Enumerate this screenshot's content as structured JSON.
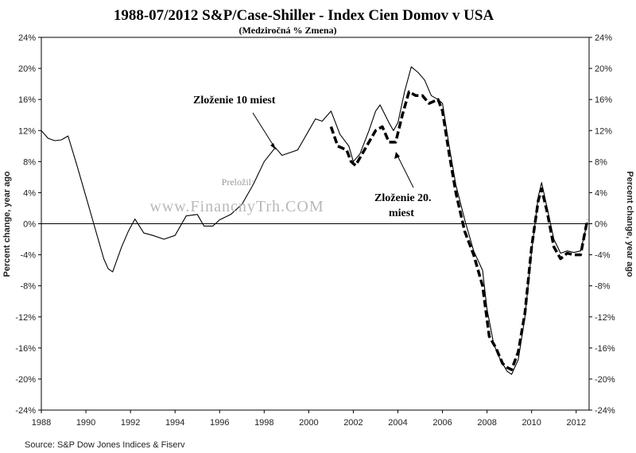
{
  "chart_data": {
    "type": "line",
    "title": "1988-07/2012 S&P/Case-Shiller  - Index Cien Domov v USA",
    "subtitle": "(Medziročná % Zmena)",
    "ylabel_left": "Percent change, year ago",
    "ylabel_right": "Percent change, year ago",
    "xlabel": "",
    "xlim": [
      1988,
      2012.58
    ],
    "ylim": [
      -24,
      24
    ],
    "x_ticks": [
      1988,
      1990,
      1992,
      1994,
      1996,
      1998,
      2000,
      2002,
      2004,
      2006,
      2008,
      2010,
      2012
    ],
    "y_ticks": [
      -24,
      -20,
      -16,
      -12,
      -8,
      -4,
      0,
      4,
      8,
      12,
      16,
      20,
      24
    ],
    "y_tick_labels": [
      "-24%",
      "-20%",
      "-16%",
      "-12%",
      "-8%",
      "-4%",
      "0%",
      "4%",
      "8%",
      "12%",
      "16%",
      "20%",
      "24%"
    ],
    "grid": false,
    "zero_line": true,
    "series": [
      {
        "name": "Zloženie 10 miest",
        "style": "solid",
        "color": "#000000",
        "points": [
          [
            1988.0,
            12.0
          ],
          [
            1988.3,
            11.0
          ],
          [
            1988.6,
            10.7
          ],
          [
            1988.9,
            10.8
          ],
          [
            1989.2,
            11.3
          ],
          [
            1989.6,
            7.5
          ],
          [
            1990.0,
            3.5
          ],
          [
            1990.4,
            -0.5
          ],
          [
            1990.8,
            -4.5
          ],
          [
            1991.0,
            -5.8
          ],
          [
            1991.2,
            -6.2
          ],
          [
            1991.6,
            -3.0
          ],
          [
            1991.9,
            -1.0
          ],
          [
            1992.2,
            0.6
          ],
          [
            1992.6,
            -1.2
          ],
          [
            1993.0,
            -1.5
          ],
          [
            1993.5,
            -2.0
          ],
          [
            1994.0,
            -1.5
          ],
          [
            1994.5,
            1.0
          ],
          [
            1995.0,
            1.2
          ],
          [
            1995.3,
            -0.3
          ],
          [
            1995.7,
            -0.3
          ],
          [
            1996.0,
            0.5
          ],
          [
            1996.5,
            1.2
          ],
          [
            1997.0,
            2.5
          ],
          [
            1997.5,
            5.0
          ],
          [
            1998.0,
            8.0
          ],
          [
            1998.5,
            9.8
          ],
          [
            1998.8,
            8.8
          ],
          [
            1999.2,
            9.2
          ],
          [
            1999.5,
            9.5
          ],
          [
            2000.0,
            12.0
          ],
          [
            2000.3,
            13.5
          ],
          [
            2000.6,
            13.2
          ],
          [
            2001.0,
            14.5
          ],
          [
            2001.4,
            11.5
          ],
          [
            2001.8,
            10.0
          ],
          [
            2002.0,
            8.0
          ],
          [
            2002.3,
            9.0
          ],
          [
            2002.7,
            12.0
          ],
          [
            2003.0,
            14.5
          ],
          [
            2003.2,
            15.3
          ],
          [
            2003.6,
            13.0
          ],
          [
            2003.8,
            12.0
          ],
          [
            2004.0,
            13.0
          ],
          [
            2004.3,
            17.0
          ],
          [
            2004.6,
            20.2
          ],
          [
            2004.9,
            19.5
          ],
          [
            2005.2,
            18.5
          ],
          [
            2005.5,
            16.5
          ],
          [
            2005.8,
            16.0
          ],
          [
            2006.0,
            15.5
          ],
          [
            2006.3,
            10.0
          ],
          [
            2006.6,
            5.0
          ],
          [
            2007.0,
            0.5
          ],
          [
            2007.4,
            -3.5
          ],
          [
            2007.8,
            -6.0
          ],
          [
            2008.0,
            -11.0
          ],
          [
            2008.3,
            -15.5
          ],
          [
            2008.6,
            -17.5
          ],
          [
            2008.9,
            -19.0
          ],
          [
            2009.1,
            -19.4
          ],
          [
            2009.4,
            -17.5
          ],
          [
            2009.7,
            -12.0
          ],
          [
            2010.0,
            -3.5
          ],
          [
            2010.3,
            3.5
          ],
          [
            2010.45,
            5.3
          ],
          [
            2010.7,
            2.0
          ],
          [
            2011.0,
            -2.0
          ],
          [
            2011.3,
            -3.8
          ],
          [
            2011.6,
            -3.5
          ],
          [
            2011.9,
            -3.7
          ],
          [
            2012.2,
            -3.5
          ],
          [
            2012.5,
            0.2
          ]
        ]
      },
      {
        "name": "Zloženie 20. miest",
        "style": "dashed",
        "color": "#000000",
        "points": [
          [
            2001.0,
            12.5
          ],
          [
            2001.3,
            10.0
          ],
          [
            2001.7,
            9.5
          ],
          [
            2001.9,
            8.0
          ],
          [
            2002.1,
            7.5
          ],
          [
            2002.5,
            9.5
          ],
          [
            2003.0,
            12.0
          ],
          [
            2003.3,
            12.5
          ],
          [
            2003.6,
            10.5
          ],
          [
            2003.9,
            10.5
          ],
          [
            2004.2,
            14.0
          ],
          [
            2004.5,
            17.0
          ],
          [
            2004.8,
            16.5
          ],
          [
            2005.1,
            16.5
          ],
          [
            2005.4,
            15.5
          ],
          [
            2005.8,
            16.0
          ],
          [
            2006.0,
            14.5
          ],
          [
            2006.3,
            9.0
          ],
          [
            2006.6,
            4.0
          ],
          [
            2007.0,
            -1.0
          ],
          [
            2007.4,
            -4.0
          ],
          [
            2007.8,
            -8.0
          ],
          [
            2008.1,
            -14.5
          ],
          [
            2008.4,
            -16.0
          ],
          [
            2008.7,
            -18.0
          ],
          [
            2008.9,
            -18.5
          ],
          [
            2009.1,
            -18.8
          ],
          [
            2009.4,
            -16.5
          ],
          [
            2009.7,
            -11.5
          ],
          [
            2010.0,
            -3.0
          ],
          [
            2010.3,
            3.0
          ],
          [
            2010.45,
            4.5
          ],
          [
            2010.7,
            1.5
          ],
          [
            2011.0,
            -3.0
          ],
          [
            2011.3,
            -4.5
          ],
          [
            2011.6,
            -3.8
          ],
          [
            2011.9,
            -4.0
          ],
          [
            2012.2,
            -4.0
          ],
          [
            2012.5,
            0.5
          ]
        ]
      }
    ],
    "annotations": [
      {
        "text": "Zloženie 10 miest"
      },
      {
        "text": "Zloženie 20."
      },
      {
        "text": "miest"
      }
    ],
    "watermark": "www.FinancnyTrh.COM",
    "watermark_small": "Preložil:",
    "source": "Source: S&P Dow Jones Indices & Fiserv"
  }
}
